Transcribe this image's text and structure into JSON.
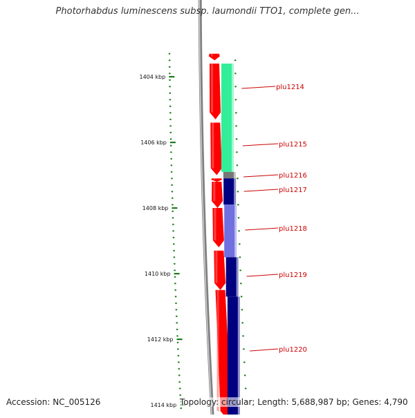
{
  "title": "Photorhabdus luminescens subsp. laumondii TTO1, complete gen...",
  "footer": {
    "accession": "Accession: NC_005126",
    "topology": "Topology: circular; Length: 5,688,987 bp; Genes: 4,790"
  },
  "colors": {
    "backbone": "#808080",
    "forward_strand": "#ff0000",
    "tick": "#1a7a1a",
    "gene_label": "#cc0000",
    "gene_plu1214": "#33ee99",
    "gene_plu1216": "#777777",
    "gene_plu1217": "#000080",
    "gene_plu1218": "#7070e0",
    "gene_plu1219": "#000080",
    "gene_plu1220": "#000080"
  },
  "scale": {
    "major_ticks": [
      {
        "label": "1404 kbp",
        "kbp": 1404
      },
      {
        "label": "1406 kbp",
        "kbp": 1406
      },
      {
        "label": "1408 kbp",
        "kbp": 1408
      },
      {
        "label": "1410 kbp",
        "kbp": 1410
      },
      {
        "label": "1412 kbp",
        "kbp": 1412
      },
      {
        "label": "1414 kbp",
        "kbp": 1414
      }
    ],
    "range_kbp": [
      1403.3,
      1414.4
    ]
  },
  "genes": [
    {
      "name": "plu1214",
      "start_kbp": 1403.6,
      "end_kbp": 1406.9,
      "color_key": "gene_plu1214"
    },
    {
      "name": "plu1215",
      "start_kbp": 1403.6,
      "end_kbp": 1406.9,
      "color_key": "gene_plu1214"
    },
    {
      "name": "plu1216",
      "start_kbp": 1406.9,
      "end_kbp": 1407.1,
      "color_key": "gene_plu1216"
    },
    {
      "name": "plu1217",
      "start_kbp": 1407.1,
      "end_kbp": 1407.9,
      "color_key": "gene_plu1217"
    },
    {
      "name": "plu1218",
      "start_kbp": 1407.9,
      "end_kbp": 1409.5,
      "color_key": "gene_plu1218"
    },
    {
      "name": "plu1219",
      "start_kbp": 1409.5,
      "end_kbp": 1410.7,
      "color_key": "gene_plu1219"
    },
    {
      "name": "plu1220",
      "start_kbp": 1410.7,
      "end_kbp": 1414.4,
      "color_key": "gene_plu1220"
    }
  ],
  "forward_segments_kbp": [
    [
      1403.3,
      1403.5
    ],
    [
      1403.6,
      1405.3
    ],
    [
      1405.4,
      1407.0
    ],
    [
      1407.1,
      1407.2
    ],
    [
      1407.2,
      1408.0
    ],
    [
      1408.0,
      1409.2
    ],
    [
      1409.3,
      1410.5
    ],
    [
      1410.5,
      1414.4
    ]
  ]
}
